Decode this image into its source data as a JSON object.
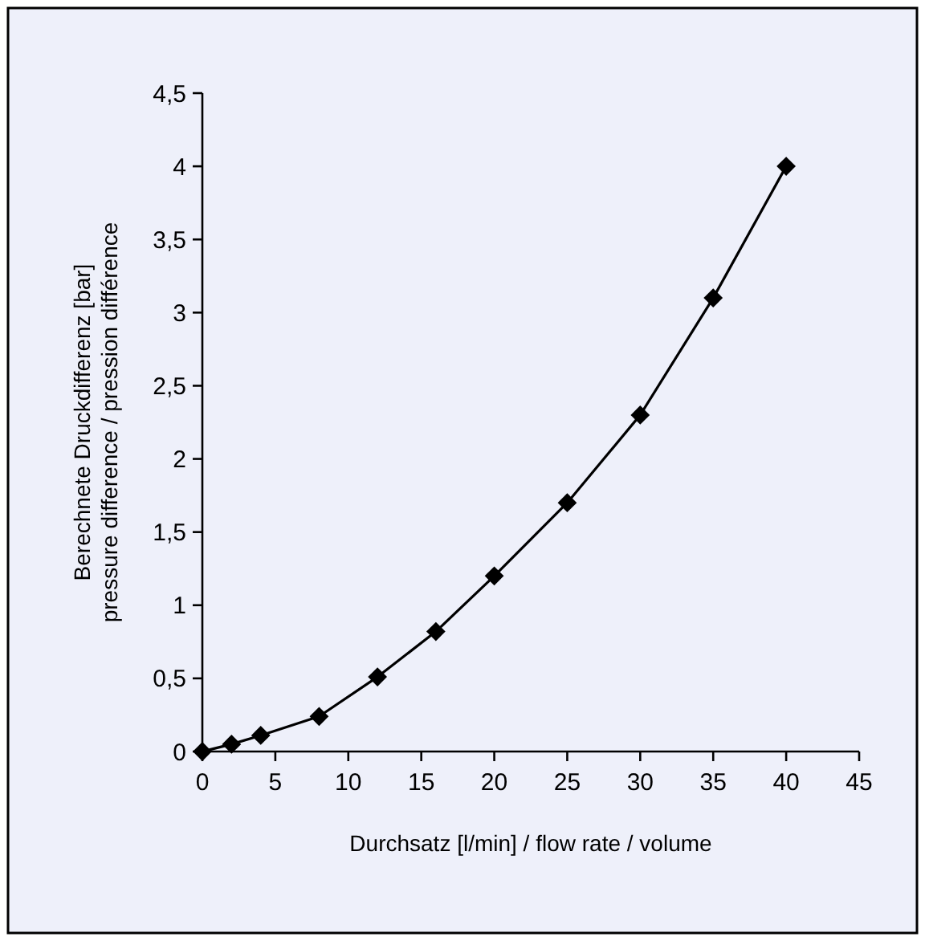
{
  "chart_data": {
    "type": "line",
    "xlabel": "Durchsatz [l/min] / flow rate / volume",
    "ylabel": "Berechnete Druckdifferenz [bar]\npressure difference / pression différence",
    "x": [
      0,
      2,
      4,
      8,
      12,
      16,
      20,
      25,
      30,
      35,
      40
    ],
    "series": [
      {
        "color": "#000000",
        "values": [
          0,
          0.05,
          0.11,
          0.24,
          0.51,
          0.82,
          1.2,
          1.7,
          2.3,
          3.1,
          4.0
        ]
      }
    ],
    "xlim": [
      0,
      45
    ],
    "xticks": [
      0,
      5,
      10,
      15,
      20,
      25,
      30,
      35,
      40,
      45
    ],
    "ylim": [
      0,
      4.5
    ],
    "yticks": [
      0,
      {
        "value": 0.5,
        "label": "0,5"
      },
      1,
      {
        "value": 1.5,
        "label": "1,5"
      },
      2,
      {
        "value": 2.5,
        "label": "2,5"
      },
      3,
      {
        "value": 3.5,
        "label": "3,5"
      },
      4,
      {
        "value": 4.5,
        "label": "4,5"
      }
    ],
    "grid": false,
    "marker": "diamond",
    "line_style": "solid"
  }
}
